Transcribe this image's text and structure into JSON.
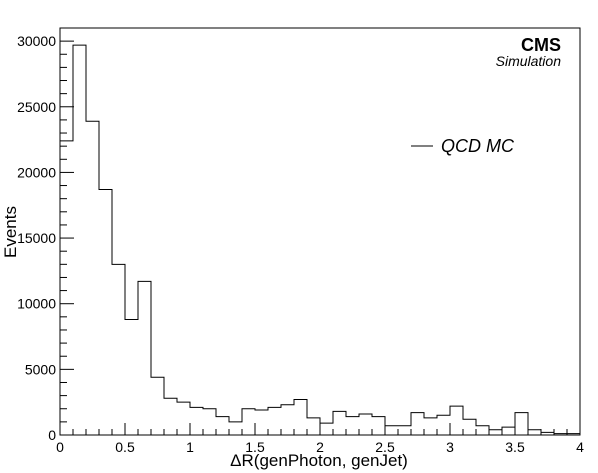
{
  "chart_data": {
    "type": "histogram",
    "xlabel": "ΔR(genPhoton, genJet)",
    "ylabel": "Events",
    "xlim": [
      0,
      4
    ],
    "ylim": [
      0,
      31000
    ],
    "bin_width": 0.1,
    "x_ticks": [
      {
        "v": 0,
        "label": "0"
      },
      {
        "v": 0.5,
        "label": "0.5"
      },
      {
        "v": 1,
        "label": "1"
      },
      {
        "v": 1.5,
        "label": "1.5"
      },
      {
        "v": 2,
        "label": "2"
      },
      {
        "v": 2.5,
        "label": "2.5"
      },
      {
        "v": 3,
        "label": "3"
      },
      {
        "v": 3.5,
        "label": "3.5"
      },
      {
        "v": 4,
        "label": "4"
      }
    ],
    "y_ticks": [
      {
        "v": 0,
        "label": "0"
      },
      {
        "v": 5000,
        "label": "5000"
      },
      {
        "v": 10000,
        "label": "10000"
      },
      {
        "v": 15000,
        "label": "15000"
      },
      {
        "v": 20000,
        "label": "20000"
      },
      {
        "v": 25000,
        "label": "25000"
      },
      {
        "v": 30000,
        "label": "30000"
      }
    ],
    "grid": false,
    "legend_position": "top-right",
    "series": [
      {
        "name": "QCD MC",
        "color": "#000000",
        "bin_edges_start": 0,
        "values": [
          22400,
          29700,
          23900,
          18700,
          13000,
          8800,
          11700,
          4400,
          2800,
          2500,
          2100,
          2000,
          1400,
          1000,
          2000,
          1900,
          2100,
          2300,
          2700,
          1300,
          900,
          1800,
          1400,
          1600,
          1400,
          700,
          700,
          1700,
          1300,
          1500,
          2200,
          1200,
          700,
          400,
          600,
          1700,
          400,
          200,
          100,
          100
        ]
      }
    ]
  },
  "labels": {
    "experiment": "CMS",
    "status": "Simulation",
    "legend_entry": "QCD MC"
  }
}
